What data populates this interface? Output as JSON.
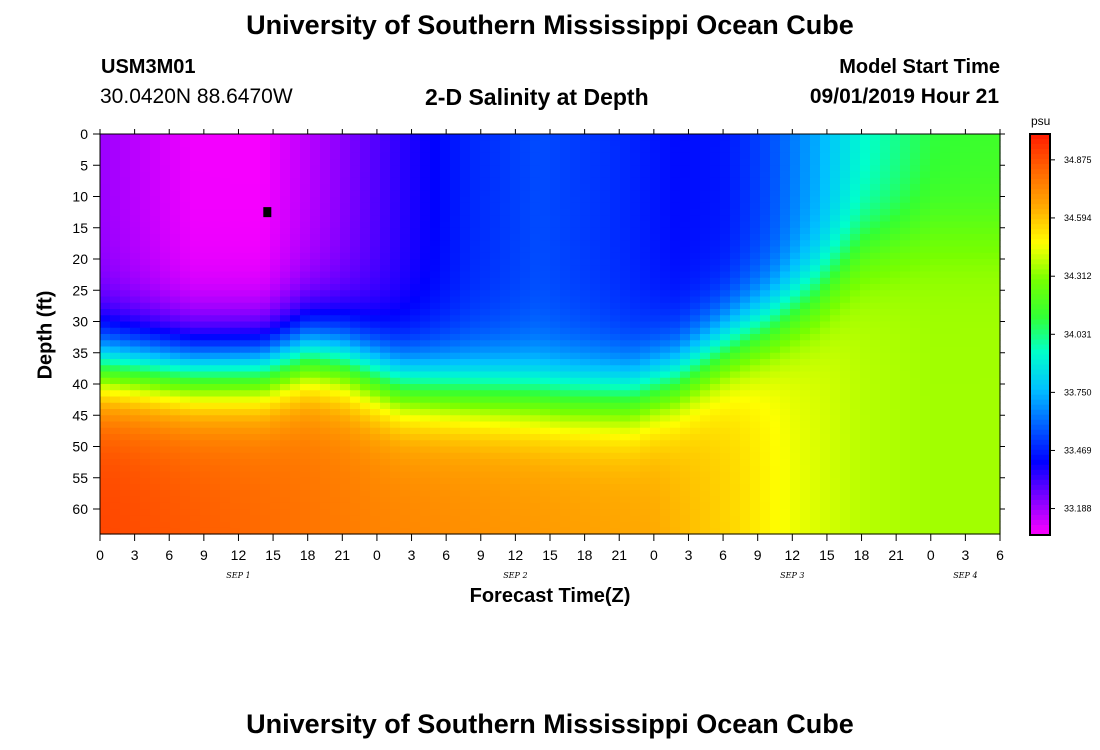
{
  "header": {
    "title": "University of Southern Mississippi Ocean Cube",
    "station_id": "USM3M01",
    "station_coords": "30.0420N 88.6470W",
    "chart_title": "2-D Salinity at Depth",
    "model_label": "Model Start Time",
    "model_time": "09/01/2019 Hour 21"
  },
  "footer": {
    "title": "University of Southern Mississippi Ocean Cube"
  },
  "colors": {
    "scale": [
      "#ff00ff",
      "#7f00ff",
      "#0000ff",
      "#0060ff",
      "#00c0ff",
      "#00ffcc",
      "#33ff33",
      "#77ff00",
      "#ffff00",
      "#ffaa00",
      "#ff6600",
      "#ff1a00"
    ]
  },
  "chart_data": {
    "type": "heatmap",
    "title": "2-D Salinity at Depth",
    "xlabel": "Forecast Time(Z)",
    "ylabel": "Depth (ft)",
    "x_ticks": [
      "0",
      "3",
      "6",
      "9",
      "12",
      "15",
      "18",
      "21",
      "0",
      "3",
      "6",
      "9",
      "12",
      "15",
      "18",
      "21",
      "0",
      "3",
      "6",
      "9",
      "12",
      "15",
      "18",
      "21",
      "0",
      "3",
      "6"
    ],
    "xlim_hours": [
      0,
      78
    ],
    "date_labels": [
      {
        "hour": 12,
        "label": "SEP 1"
      },
      {
        "hour": 36,
        "label": "SEP 2"
      },
      {
        "hour": 60,
        "label": "SEP 3"
      },
      {
        "hour": 75,
        "label": "SEP 4"
      }
    ],
    "y_ticks": [
      0,
      5,
      10,
      15,
      20,
      25,
      30,
      35,
      40,
      45,
      50,
      55,
      60
    ],
    "ylim": [
      0,
      64
    ],
    "colorbar": {
      "unit": "psu",
      "labels": [
        "34.875",
        "34.594",
        "34.312",
        "34.031",
        "33.750",
        "33.469",
        "33.188"
      ],
      "range": [
        33.06,
        35.0
      ]
    },
    "surface_salinity": [
      {
        "hour": 0,
        "value": 33.2
      },
      {
        "hour": 8,
        "value": 33.08
      },
      {
        "hour": 14,
        "value": 33.07
      },
      {
        "hour": 20,
        "value": 33.2
      },
      {
        "hour": 26,
        "value": 33.35
      },
      {
        "hour": 32,
        "value": 33.48
      },
      {
        "hour": 38,
        "value": 33.55
      },
      {
        "hour": 44,
        "value": 33.5
      },
      {
        "hour": 50,
        "value": 33.43
      },
      {
        "hour": 54,
        "value": 33.45
      },
      {
        "hour": 58,
        "value": 33.55
      },
      {
        "hour": 62,
        "value": 33.72
      },
      {
        "hour": 66,
        "value": 33.92
      },
      {
        "hour": 72,
        "value": 34.1
      },
      {
        "hour": 78,
        "value": 34.15
      }
    ],
    "deep_salinity": [
      {
        "hour": 0,
        "value": 34.9
      },
      {
        "hour": 24,
        "value": 34.75
      },
      {
        "hour": 48,
        "value": 34.65
      },
      {
        "hour": 55,
        "value": 34.55
      },
      {
        "hour": 60,
        "value": 34.45
      },
      {
        "hour": 66,
        "value": 34.38
      },
      {
        "hour": 72,
        "value": 34.35
      },
      {
        "hour": 78,
        "value": 34.35
      }
    ],
    "halocline_depth_ft": [
      {
        "hour": 0,
        "value": 37
      },
      {
        "hour": 8,
        "value": 38
      },
      {
        "hour": 14,
        "value": 37.5
      },
      {
        "hour": 18,
        "value": 35
      },
      {
        "hour": 21,
        "value": 36
      },
      {
        "hour": 26,
        "value": 40
      },
      {
        "hour": 32,
        "value": 41
      },
      {
        "hour": 40,
        "value": 42
      },
      {
        "hour": 46,
        "value": 42
      },
      {
        "hour": 50,
        "value": 39
      },
      {
        "hour": 54,
        "value": 34
      },
      {
        "hour": 58,
        "value": 30
      },
      {
        "hour": 62,
        "value": 25
      },
      {
        "hour": 66,
        "value": 18
      },
      {
        "hour": 72,
        "value": 15
      },
      {
        "hour": 78,
        "value": 15
      }
    ],
    "marker": {
      "hour": 14.5,
      "depth_ft": 12.5
    }
  }
}
